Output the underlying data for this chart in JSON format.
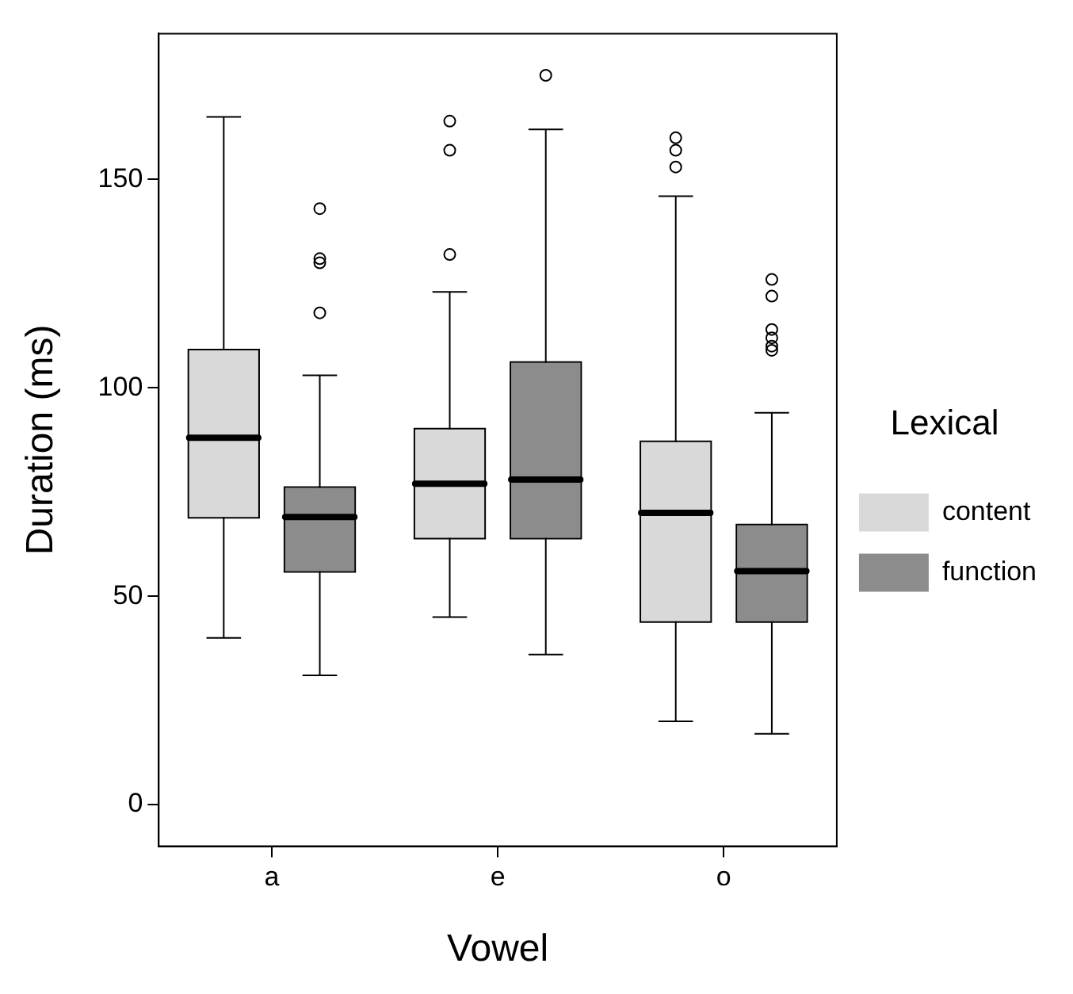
{
  "chart_data": {
    "type": "box",
    "xlabel": "Vowel",
    "ylabel": "Duration (ms)",
    "legend_title": "Lexical",
    "legend": "right",
    "grid": false,
    "categories": [
      "a",
      "e",
      "o"
    ],
    "ylim": [
      -10,
      185
    ],
    "yticks": [
      0,
      50,
      100,
      150
    ],
    "series": [
      {
        "name": "content",
        "color": "#d9d9d9",
        "boxes": [
          {
            "low": 40,
            "q1": 69,
            "median": 88,
            "q3": 109,
            "high": 165
          },
          {
            "low": 45,
            "q1": 64,
            "median": 77,
            "q3": 90,
            "high": 123,
            "outliers": [
              132,
              157,
              164
            ]
          },
          {
            "low": 20,
            "q1": 44,
            "median": 70,
            "q3": 87,
            "high": 146,
            "outliers": [
              153,
              157,
              160
            ]
          }
        ]
      },
      {
        "name": "function",
        "color": "#8c8c8c",
        "boxes": [
          {
            "low": 31,
            "q1": 56,
            "median": 69,
            "q3": 76,
            "high": 103,
            "outliers": [
              118,
              130,
              131,
              143
            ]
          },
          {
            "low": 36,
            "q1": 64,
            "median": 78,
            "q3": 106,
            "high": 162,
            "outliers": [
              175
            ]
          },
          {
            "low": 17,
            "q1": 44,
            "median": 56,
            "q3": 67,
            "high": 94,
            "outliers": [
              109,
              110,
              112,
              114,
              122,
              126
            ]
          }
        ]
      }
    ]
  }
}
